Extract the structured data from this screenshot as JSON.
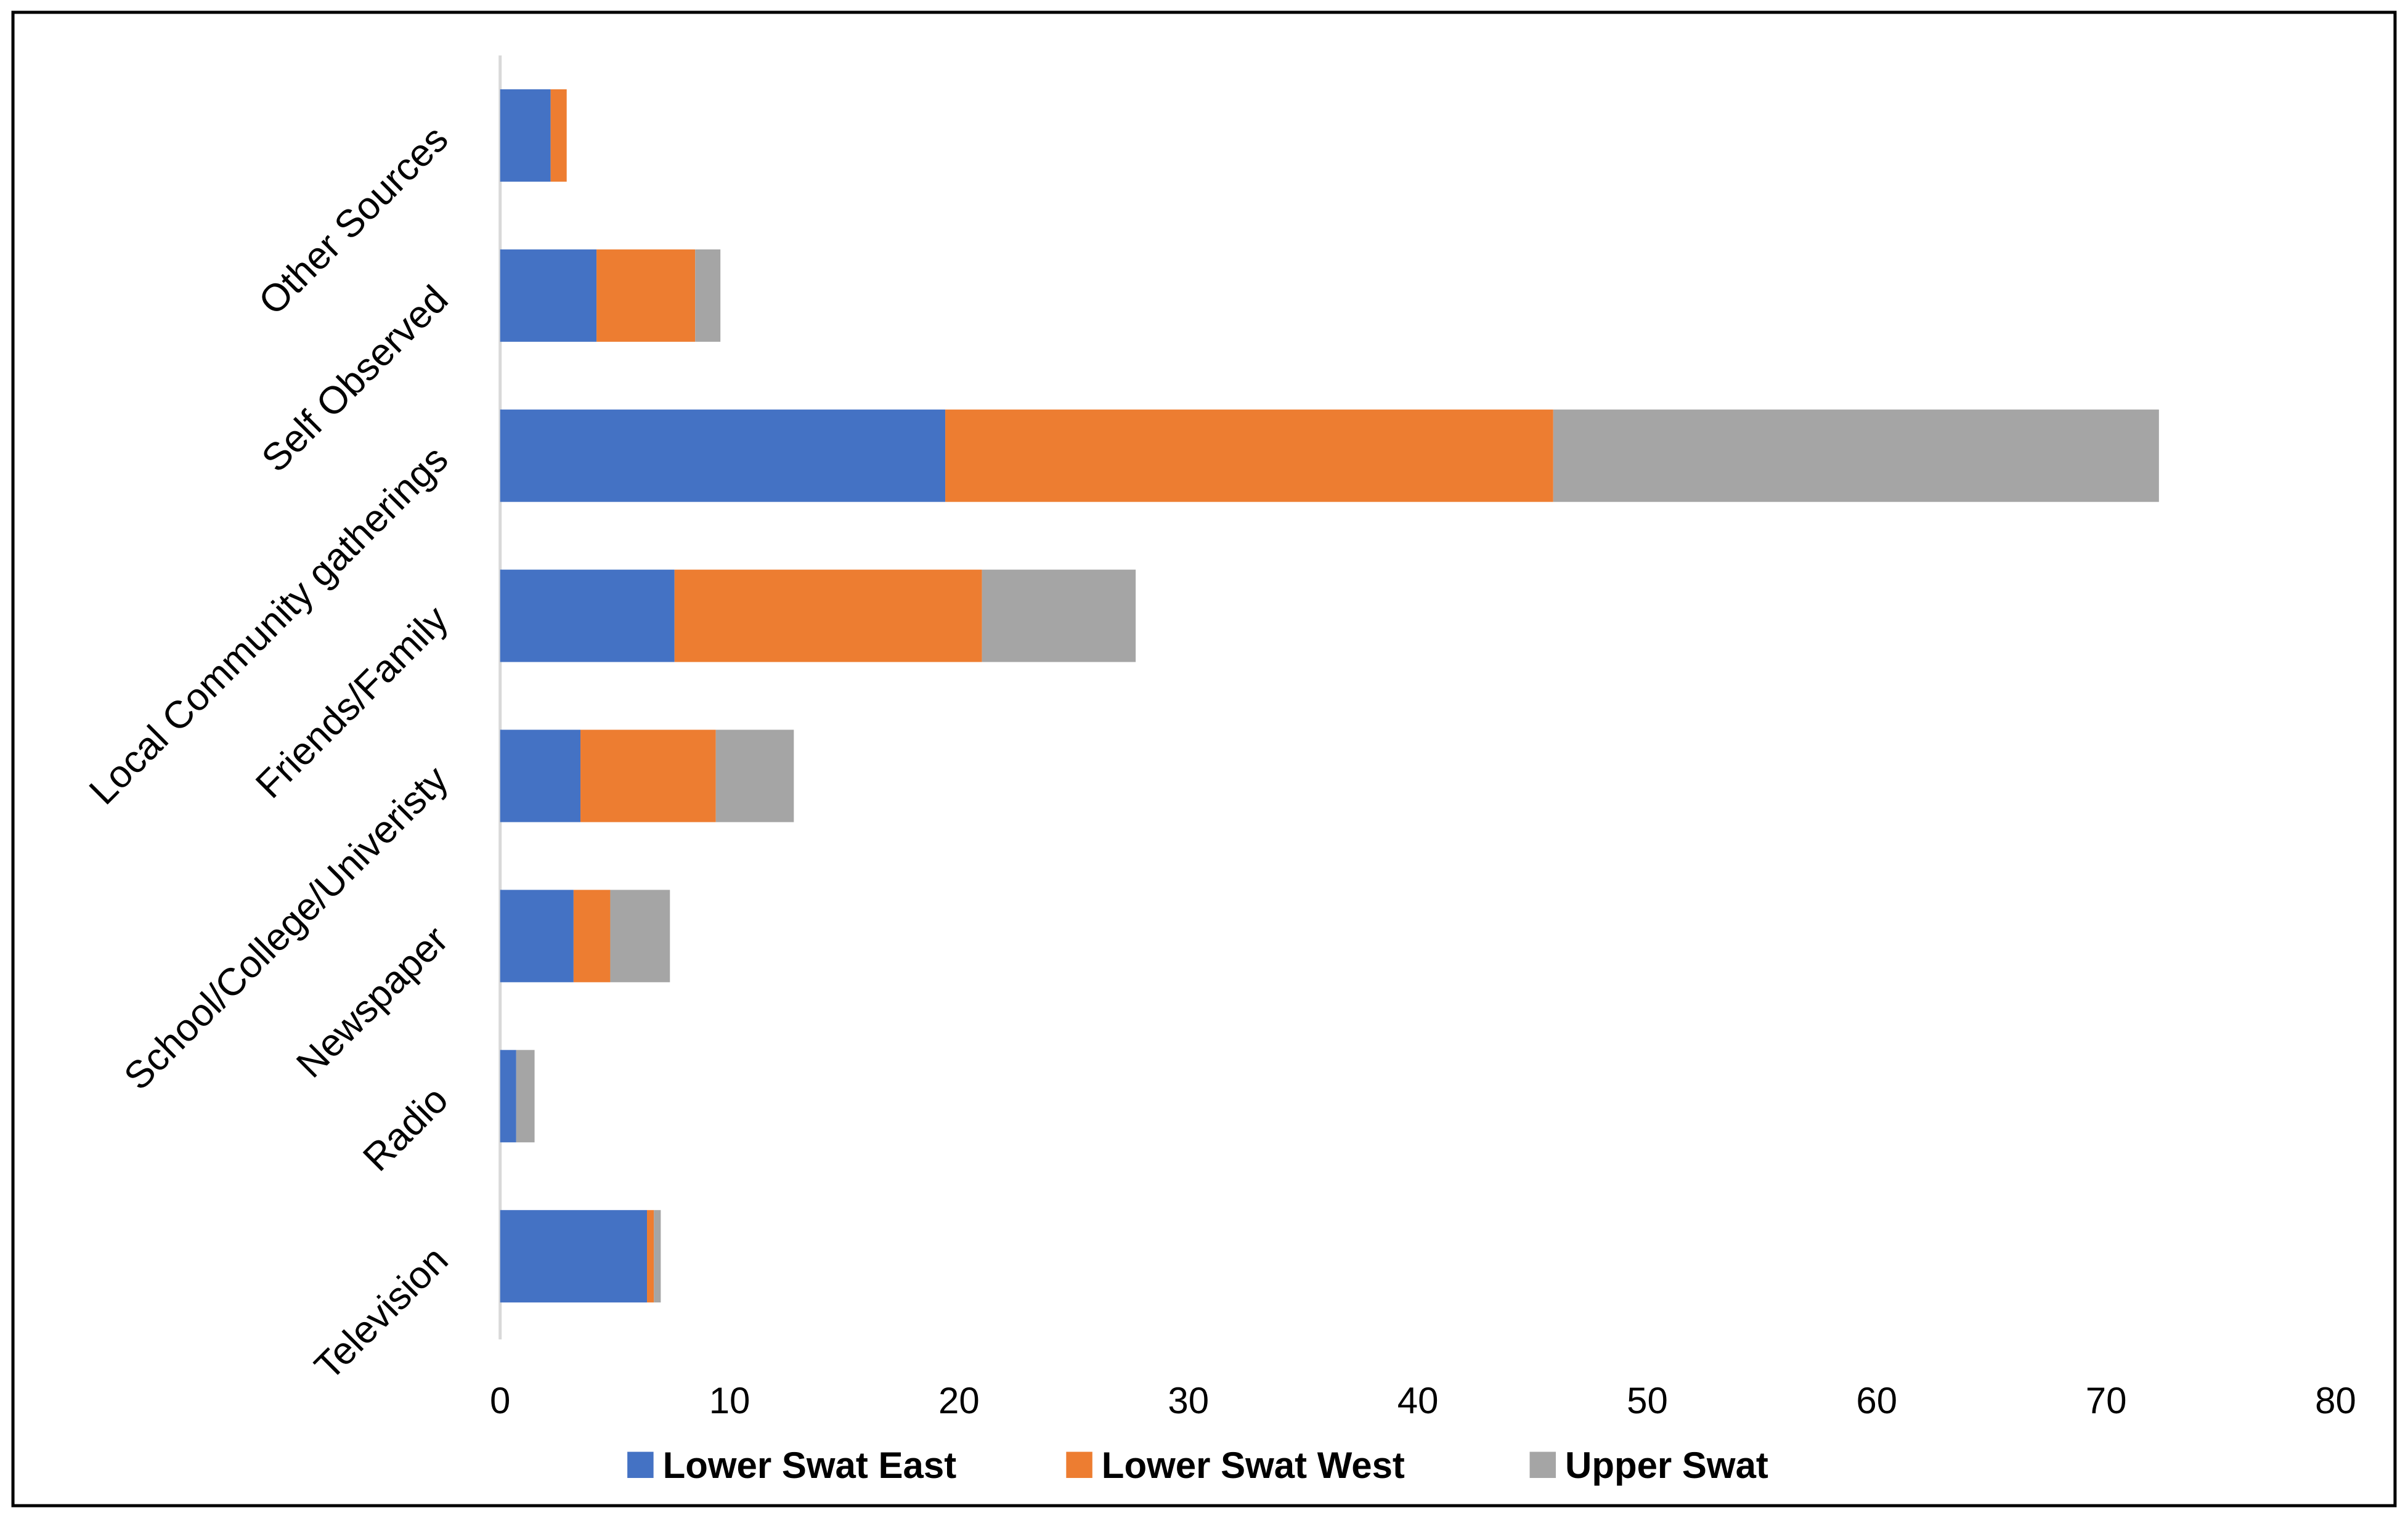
{
  "chart_data": {
    "type": "bar",
    "orientation": "horizontal",
    "stacked": true,
    "categories": [
      "Television",
      "Radio",
      "Newspaper",
      "School/College/Univeristy",
      "Friends/Family",
      "Local Community gatherings",
      "Self Observed",
      "Other Sources"
    ],
    "series": [
      {
        "name": "Lower Swat East",
        "color": "#4472C4",
        "values": [
          6.4,
          0.7,
          3.2,
          3.5,
          7.6,
          19.4,
          4.2,
          2.2
        ]
      },
      {
        "name": "Lower Swat West",
        "color": "#ED7D31",
        "values": [
          0.3,
          0,
          1.6,
          5.9,
          13.4,
          26.5,
          4.3,
          0.7
        ]
      },
      {
        "name": "Upper Swat",
        "color": "#A5A5A5",
        "values": [
          0.3,
          0.8,
          2.6,
          3.4,
          6.7,
          26.4,
          1.1,
          0
        ]
      }
    ],
    "xlim": [
      0,
      80
    ],
    "xticks": [
      "0",
      "10",
      "20",
      "30",
      "40",
      "50",
      "60",
      "70",
      "80"
    ],
    "grid": false,
    "legend": "bottom",
    "title": "",
    "xlabel": "",
    "ylabel": ""
  }
}
